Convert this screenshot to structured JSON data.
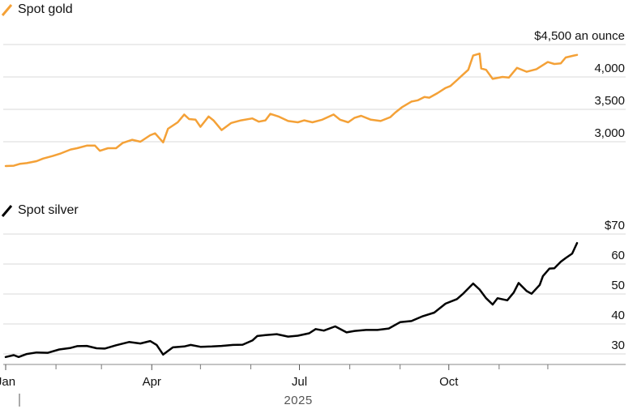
{
  "chart_data": [
    {
      "type": "line",
      "series": [
        {
          "name": "Spot gold",
          "color": "#f4a137"
        }
      ],
      "legend_label": "Spot gold",
      "y_ticks": [
        {
          "value": 4500,
          "label": "$4,500 an ounce"
        },
        {
          "value": 4000,
          "label": "4,000"
        },
        {
          "value": 3500,
          "label": "3,500"
        },
        {
          "value": 3000,
          "label": "3,000"
        }
      ],
      "ylim": [
        2600,
        4500
      ],
      "grid": true,
      "points": [
        [
          "2025-01-01",
          2625
        ],
        [
          "2025-01-06",
          2630
        ],
        [
          "2025-01-10",
          2660
        ],
        [
          "2025-01-14",
          2670
        ],
        [
          "2025-01-20",
          2700
        ],
        [
          "2025-01-24",
          2740
        ],
        [
          "2025-01-30",
          2780
        ],
        [
          "2025-02-04",
          2820
        ],
        [
          "2025-02-10",
          2880
        ],
        [
          "2025-02-14",
          2900
        ],
        [
          "2025-02-20",
          2940
        ],
        [
          "2025-02-25",
          2940
        ],
        [
          "2025-02-28",
          2860
        ],
        [
          "2025-03-05",
          2900
        ],
        [
          "2025-03-10",
          2900
        ],
        [
          "2025-03-14",
          2980
        ],
        [
          "2025-03-20",
          3030
        ],
        [
          "2025-03-25",
          3000
        ],
        [
          "2025-03-31",
          3100
        ],
        [
          "2025-04-03",
          3130
        ],
        [
          "2025-04-08",
          2990
        ],
        [
          "2025-04-11",
          3200
        ],
        [
          "2025-04-14",
          3250
        ],
        [
          "2025-04-17",
          3300
        ],
        [
          "2025-04-21",
          3420
        ],
        [
          "2025-04-24",
          3350
        ],
        [
          "2025-04-28",
          3340
        ],
        [
          "2025-05-01",
          3230
        ],
        [
          "2025-05-06",
          3390
        ],
        [
          "2025-05-09",
          3330
        ],
        [
          "2025-05-14",
          3180
        ],
        [
          "2025-05-20",
          3290
        ],
        [
          "2025-05-26",
          3330
        ],
        [
          "2025-06-02",
          3360
        ],
        [
          "2025-06-06",
          3310
        ],
        [
          "2025-06-10",
          3330
        ],
        [
          "2025-06-13",
          3430
        ],
        [
          "2025-06-18",
          3390
        ],
        [
          "2025-06-24",
          3320
        ],
        [
          "2025-06-30",
          3300
        ],
        [
          "2025-07-04",
          3330
        ],
        [
          "2025-07-09",
          3300
        ],
        [
          "2025-07-15",
          3340
        ],
        [
          "2025-07-22",
          3420
        ],
        [
          "2025-07-26",
          3340
        ],
        [
          "2025-07-31",
          3300
        ],
        [
          "2025-08-04",
          3370
        ],
        [
          "2025-08-08",
          3400
        ],
        [
          "2025-08-14",
          3340
        ],
        [
          "2025-08-20",
          3320
        ],
        [
          "2025-08-26",
          3380
        ],
        [
          "2025-08-29",
          3450
        ],
        [
          "2025-09-02",
          3530
        ],
        [
          "2025-09-08",
          3620
        ],
        [
          "2025-09-12",
          3640
        ],
        [
          "2025-09-16",
          3690
        ],
        [
          "2025-09-19",
          3680
        ],
        [
          "2025-09-24",
          3750
        ],
        [
          "2025-09-29",
          3830
        ],
        [
          "2025-10-02",
          3860
        ],
        [
          "2025-10-06",
          3950
        ],
        [
          "2025-10-09",
          4020
        ],
        [
          "2025-10-13",
          4110
        ],
        [
          "2025-10-16",
          4330
        ],
        [
          "2025-10-20",
          4360
        ],
        [
          "2025-10-21",
          4130
        ],
        [
          "2025-10-24",
          4110
        ],
        [
          "2025-10-28",
          3970
        ],
        [
          "2025-11-03",
          4000
        ],
        [
          "2025-11-07",
          3990
        ],
        [
          "2025-11-12",
          4140
        ],
        [
          "2025-11-14",
          4120
        ],
        [
          "2025-11-18",
          4080
        ],
        [
          "2025-11-24",
          4120
        ],
        [
          "2025-12-01",
          4230
        ],
        [
          "2025-12-05",
          4200
        ],
        [
          "2025-12-09",
          4210
        ],
        [
          "2025-12-12",
          4300
        ],
        [
          "2025-12-17",
          4330
        ],
        [
          "2025-12-19",
          4340
        ]
      ]
    },
    {
      "type": "line",
      "series": [
        {
          "name": "Spot silver",
          "color": "#000000"
        }
      ],
      "legend_label": "Spot silver",
      "y_ticks": [
        {
          "value": 70,
          "label": "$70"
        },
        {
          "value": 60,
          "label": "60"
        },
        {
          "value": 50,
          "label": "50"
        },
        {
          "value": 40,
          "label": "40"
        },
        {
          "value": 30,
          "label": "30"
        }
      ],
      "ylim": [
        26,
        74
      ],
      "grid": true,
      "points": [
        [
          "2025-01-01",
          29.0
        ],
        [
          "2025-01-06",
          29.6
        ],
        [
          "2025-01-09",
          29.0
        ],
        [
          "2025-01-14",
          30.0
        ],
        [
          "2025-01-20",
          30.5
        ],
        [
          "2025-01-27",
          30.4
        ],
        [
          "2025-02-03",
          31.5
        ],
        [
          "2025-02-10",
          32.0
        ],
        [
          "2025-02-14",
          32.6
        ],
        [
          "2025-02-20",
          32.7
        ],
        [
          "2025-02-26",
          31.9
        ],
        [
          "2025-03-03",
          31.8
        ],
        [
          "2025-03-10",
          32.9
        ],
        [
          "2025-03-18",
          34.0
        ],
        [
          "2025-03-25",
          33.5
        ],
        [
          "2025-03-31",
          34.3
        ],
        [
          "2025-04-04",
          33.0
        ],
        [
          "2025-04-08",
          29.8
        ],
        [
          "2025-04-14",
          32.2
        ],
        [
          "2025-04-21",
          32.5
        ],
        [
          "2025-04-25",
          33.0
        ],
        [
          "2025-05-01",
          32.4
        ],
        [
          "2025-05-08",
          32.5
        ],
        [
          "2025-05-14",
          32.7
        ],
        [
          "2025-05-21",
          33.0
        ],
        [
          "2025-05-27",
          33.1
        ],
        [
          "2025-06-02",
          34.5
        ],
        [
          "2025-06-05",
          36.0
        ],
        [
          "2025-06-10",
          36.3
        ],
        [
          "2025-06-17",
          36.6
        ],
        [
          "2025-06-24",
          35.8
        ],
        [
          "2025-06-30",
          36.1
        ],
        [
          "2025-07-07",
          36.9
        ],
        [
          "2025-07-11",
          38.3
        ],
        [
          "2025-07-16",
          37.8
        ],
        [
          "2025-07-23",
          39.2
        ],
        [
          "2025-07-30",
          37.2
        ],
        [
          "2025-08-04",
          37.7
        ],
        [
          "2025-08-11",
          38.0
        ],
        [
          "2025-08-18",
          38.0
        ],
        [
          "2025-08-25",
          38.5
        ],
        [
          "2025-09-01",
          40.6
        ],
        [
          "2025-09-08",
          41.0
        ],
        [
          "2025-09-15",
          42.6
        ],
        [
          "2025-09-22",
          43.8
        ],
        [
          "2025-09-29",
          46.8
        ],
        [
          "2025-10-06",
          48.3
        ],
        [
          "2025-10-10",
          50.2
        ],
        [
          "2025-10-16",
          53.5
        ],
        [
          "2025-10-20",
          51.5
        ],
        [
          "2025-10-24",
          48.6
        ],
        [
          "2025-10-28",
          46.5
        ],
        [
          "2025-10-31",
          48.6
        ],
        [
          "2025-11-06",
          47.9
        ],
        [
          "2025-11-10",
          50.5
        ],
        [
          "2025-11-13",
          53.7
        ],
        [
          "2025-11-18",
          51.0
        ],
        [
          "2025-11-21",
          50.1
        ],
        [
          "2025-11-26",
          53.0
        ],
        [
          "2025-11-28",
          56.0
        ],
        [
          "2025-12-02",
          58.5
        ],
        [
          "2025-12-05",
          58.6
        ],
        [
          "2025-12-09",
          60.8
        ],
        [
          "2025-12-12",
          62.0
        ],
        [
          "2025-12-16",
          63.5
        ],
        [
          "2025-12-19",
          67.0
        ]
      ]
    }
  ],
  "x_axis": {
    "labels": [
      {
        "date": "2025-01-01",
        "label": "Jan"
      },
      {
        "date": "2025-04-01",
        "label": "Apr"
      },
      {
        "date": "2025-07-01",
        "label": "Jul"
      },
      {
        "date": "2025-10-01",
        "label": "Oct"
      }
    ],
    "minor_ticks": [
      "2025-02-01",
      "2025-03-01",
      "2025-05-01",
      "2025-06-01",
      "2025-08-01",
      "2025-09-01",
      "2025-11-01",
      "2025-12-01"
    ],
    "year_label": "2025"
  }
}
